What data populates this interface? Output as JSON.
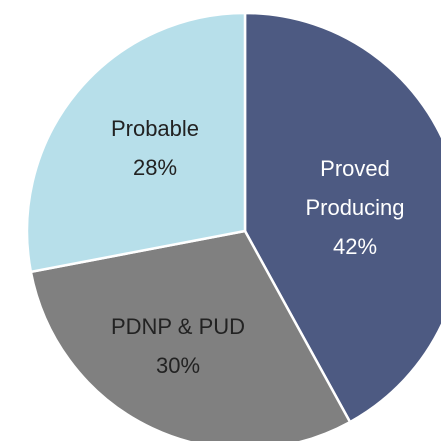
{
  "chart_data": {
    "type": "pie",
    "categories": [
      "Proved Producing",
      "PDNP & PUD",
      "Probable"
    ],
    "values": [
      42,
      30,
      28
    ],
    "value_labels": [
      "42%",
      "30%",
      "28%"
    ],
    "colors": [
      "#4d5a82",
      "#808080",
      "#b7dfea"
    ]
  }
}
